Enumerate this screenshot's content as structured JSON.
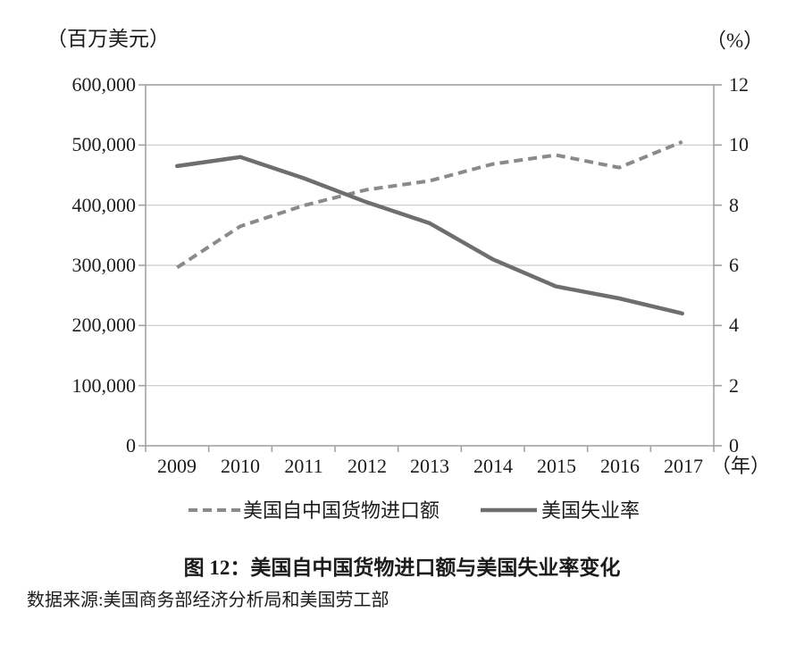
{
  "chart": {
    "unit_left": "（百万美元）",
    "unit_right": "（%）",
    "x_unit": "（年）",
    "title": "图 12：美国自中国货物进口额与美国失业率变化",
    "source": "数据来源:美国商务部经济分析局和美国劳工部"
  },
  "axes": {
    "left_ticks": [
      "600,000",
      "500,000",
      "400,000",
      "300,000",
      "200,000",
      "100,000",
      "0"
    ],
    "right_ticks": [
      "12",
      "10",
      "8",
      "6",
      "4",
      "2",
      "0"
    ],
    "x_ticks": [
      "2009",
      "2010",
      "2011",
      "2012",
      "2013",
      "2014",
      "2015",
      "2016",
      "2017"
    ]
  },
  "legend": {
    "imports_label": "美国自中国货物进口额",
    "unemployment_label": "美国失业率"
  },
  "colors": {
    "imports_line": "#8a8a8a",
    "unemployment_line": "#6e6e6e",
    "gridline": "#c9c9c9",
    "axis_border": "#a3a3a3",
    "text": "#1c1c1c"
  },
  "chart_data": {
    "type": "line",
    "title": "图 12：美国自中国货物进口额与美国失业率变化",
    "x": [
      2009,
      2010,
      2011,
      2012,
      2013,
      2014,
      2015,
      2016,
      2017
    ],
    "x_label": "年",
    "series": [
      {
        "name": "美国自中国货物进口额",
        "axis": "left",
        "style": "dashed",
        "color": "#8a8a8a",
        "values": [
          296374,
          364953,
          399371,
          425619,
          440430,
          468475,
          483202,
          462542,
          505470
        ]
      },
      {
        "name": "美国失业率",
        "axis": "right",
        "style": "solid",
        "color": "#6e6e6e",
        "values": [
          9.3,
          9.6,
          8.9,
          8.1,
          7.4,
          6.2,
          5.3,
          4.9,
          4.4
        ]
      }
    ],
    "left_axis": {
      "label": "百万美元",
      "range": [
        0,
        600000
      ],
      "tick_step": 100000
    },
    "right_axis": {
      "label": "%",
      "range": [
        0,
        12
      ],
      "tick_step": 2
    },
    "grid": true,
    "legend_position": "bottom",
    "source": "数据来源:美国商务部经济分析局和美国劳工部"
  }
}
